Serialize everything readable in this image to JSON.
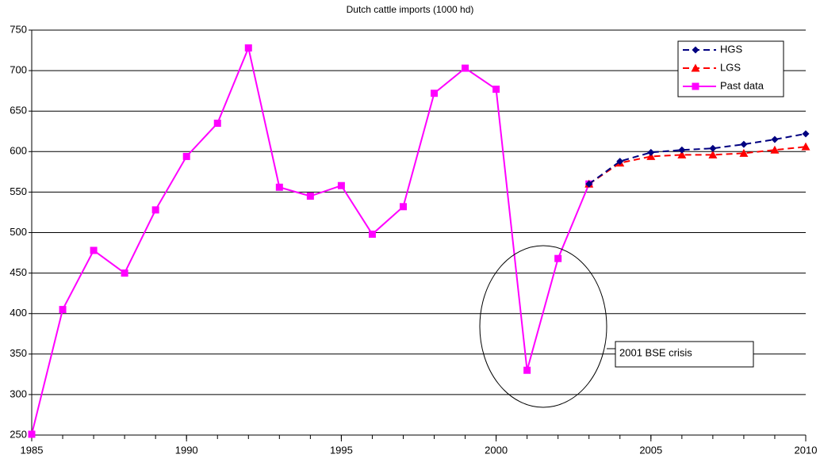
{
  "chart_data": {
    "type": "line",
    "title": "Dutch cattle imports (1000 hd)",
    "x": [
      1985,
      1986,
      1987,
      1988,
      1989,
      1990,
      1991,
      1992,
      1993,
      1994,
      1995,
      1996,
      1997,
      1998,
      1999,
      2000,
      2001,
      2002,
      2003,
      2004,
      2005,
      2006,
      2007,
      2008,
      2009,
      2010
    ],
    "xlim": [
      1985,
      2010
    ],
    "xticks": [
      1985,
      1990,
      1995,
      2000,
      2005,
      2010
    ],
    "ylim": [
      250,
      750
    ],
    "yticks": [
      250,
      300,
      350,
      400,
      450,
      500,
      550,
      600,
      650,
      700,
      750
    ],
    "grid": true,
    "legend": "top-right",
    "series": [
      {
        "name": "HGS",
        "color": "#000080",
        "dashed": true,
        "marker": "diamond",
        "values": [
          null,
          null,
          null,
          null,
          null,
          null,
          null,
          null,
          null,
          null,
          null,
          null,
          null,
          null,
          null,
          null,
          null,
          null,
          560,
          588,
          599,
          602,
          604,
          609,
          615,
          622
        ]
      },
      {
        "name": "LGS",
        "color": "#ff0000",
        "dashed": true,
        "marker": "triangle",
        "values": [
          null,
          null,
          null,
          null,
          null,
          null,
          null,
          null,
          null,
          null,
          null,
          null,
          null,
          null,
          null,
          null,
          null,
          null,
          560,
          586,
          594,
          596,
          596,
          598,
          602,
          606
        ]
      },
      {
        "name": "Past data",
        "color": "#ff00ff",
        "dashed": false,
        "marker": "square",
        "values": [
          251,
          405,
          478,
          450,
          528,
          594,
          635,
          728,
          556,
          545,
          558,
          498,
          532,
          672,
          703,
          677,
          330,
          468,
          560,
          null,
          null,
          null,
          null,
          null,
          null,
          null
        ]
      }
    ],
    "annotation": "2001 BSE crisis"
  }
}
